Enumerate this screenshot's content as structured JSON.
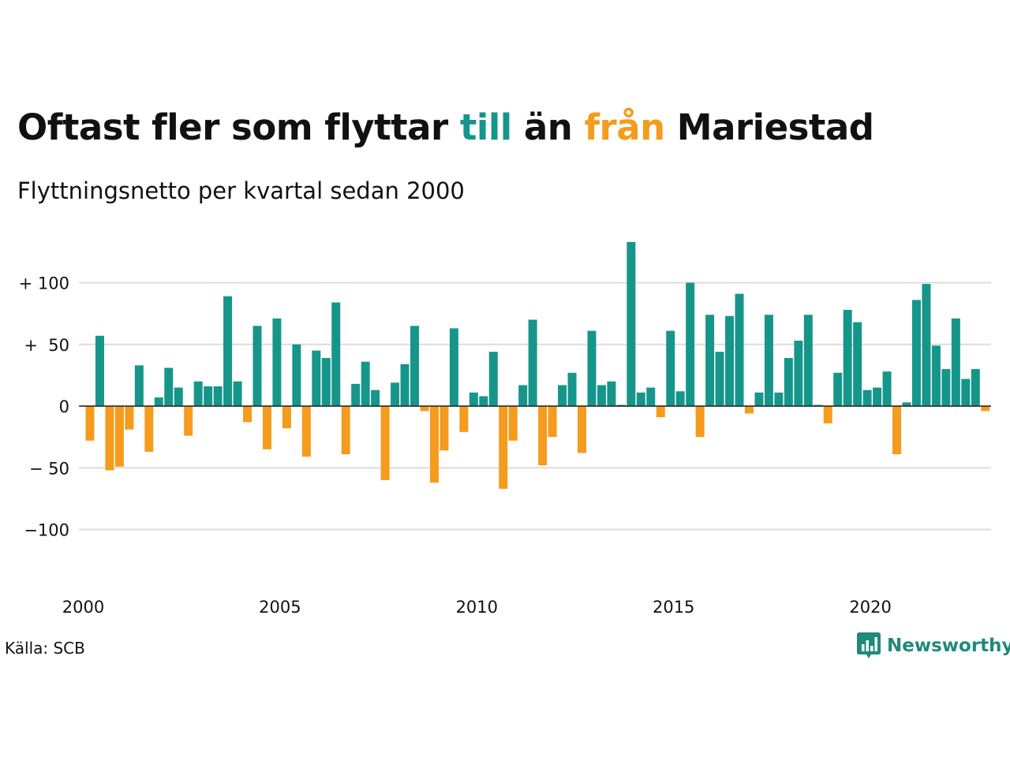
{
  "title": {
    "part1": "Oftast fler som flyttar ",
    "till": "till",
    "part2": " än ",
    "fran": "från",
    "part3": " Mariestad"
  },
  "subtitle": "Flyttningsnetto per kvartal sedan 2000",
  "source": "Källa: SCB",
  "brand": {
    "name": "Newsworthy"
  },
  "colors": {
    "positive": "#16968a",
    "negative": "#f59b1d",
    "grid": "#dddddd",
    "text": "#111111",
    "brand": "#1f8a79"
  },
  "icons": {
    "brand_logo": "chat-bar-chart-icon"
  },
  "chart_data": {
    "type": "bar",
    "x_start": "2000 Q1",
    "x_ticks": [
      "2000",
      "2005",
      "2010",
      "2015",
      "2020"
    ],
    "y_ticks": [
      {
        "value": 100,
        "label": "+ 100"
      },
      {
        "value": 50,
        "label": "+  50"
      },
      {
        "value": 0,
        "label": "0"
      },
      {
        "value": -50,
        "label": "− 50"
      },
      {
        "value": -100,
        "label": "−100"
      }
    ],
    "ylim": [
      -140,
      140
    ],
    "grid": true,
    "values": [
      -28,
      57,
      -52,
      -49,
      -19,
      33,
      -37,
      7,
      31,
      15,
      -24,
      20,
      16,
      16,
      89,
      20,
      -13,
      65,
      -35,
      71,
      -18,
      50,
      -41,
      45,
      39,
      84,
      -39,
      18,
      36,
      13,
      -60,
      19,
      34,
      65,
      -4,
      -62,
      -36,
      63,
      -21,
      11,
      8,
      44,
      -67,
      -28,
      17,
      70,
      -48,
      -25,
      17,
      27,
      -38,
      61,
      17,
      20,
      1,
      133,
      11,
      15,
      -9,
      61,
      12,
      100,
      -25,
      74,
      44,
      73,
      91,
      -6,
      11,
      74,
      11,
      39,
      53,
      74,
      1,
      -14,
      27,
      78,
      68,
      13,
      15,
      28,
      -39,
      3,
      86,
      99,
      49,
      30,
      71,
      22,
      30,
      -4
    ]
  }
}
